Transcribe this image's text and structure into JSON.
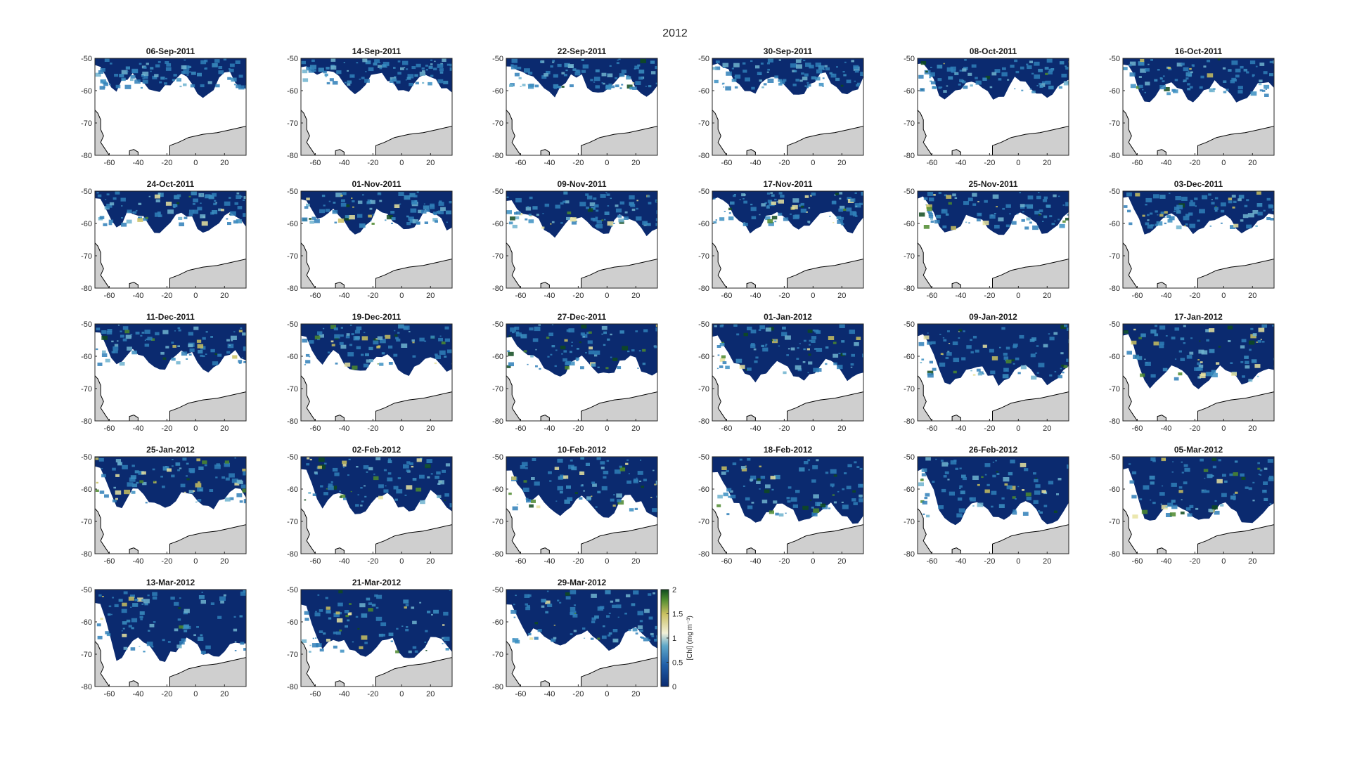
{
  "figure": {
    "title": "2012",
    "colors": {
      "ocean_low": "#0b2a6f",
      "ocean_mid": "#2f7fb8",
      "bloom_mid": "#e8e3a0",
      "bloom_high": "#0f4a1e",
      "sea_ice": "#ffffff",
      "land": "#cfcfcf",
      "coastline": "#000000",
      "axis": "#262626"
    },
    "axes": {
      "x_ticks": [
        "-60",
        "-40",
        "-20",
        "0",
        "20"
      ],
      "y_ticks": [
        "-50",
        "-60",
        "-70",
        "-80"
      ],
      "x_range": [
        -70,
        35
      ],
      "y_range": [
        -80,
        -50
      ]
    },
    "panels": [
      {
        "date": "06-Sep-2011",
        "ice_edge_lat": -57,
        "bloom": 0.08
      },
      {
        "date": "14-Sep-2011",
        "ice_edge_lat": -56,
        "bloom": 0.05
      },
      {
        "date": "22-Sep-2011",
        "ice_edge_lat": -57,
        "bloom": 0.08
      },
      {
        "date": "30-Sep-2011",
        "ice_edge_lat": -57,
        "bloom": 0.08
      },
      {
        "date": "08-Oct-2011",
        "ice_edge_lat": -58,
        "bloom": 0.08
      },
      {
        "date": "16-Oct-2011",
        "ice_edge_lat": -59,
        "bloom": 0.15
      },
      {
        "date": "24-Oct-2011",
        "ice_edge_lat": -58,
        "bloom": 0.25
      },
      {
        "date": "01-Nov-2011",
        "ice_edge_lat": -58,
        "bloom": 0.3
      },
      {
        "date": "09-Nov-2011",
        "ice_edge_lat": -59,
        "bloom": 0.3
      },
      {
        "date": "17-Nov-2011",
        "ice_edge_lat": -58,
        "bloom": 0.3
      },
      {
        "date": "25-Nov-2011",
        "ice_edge_lat": -59,
        "bloom": 0.3
      },
      {
        "date": "03-Dec-2011",
        "ice_edge_lat": -59,
        "bloom": 0.3
      },
      {
        "date": "11-Dec-2011",
        "ice_edge_lat": -60,
        "bloom": 0.4
      },
      {
        "date": "19-Dec-2011",
        "ice_edge_lat": -61,
        "bloom": 0.4
      },
      {
        "date": "27-Dec-2011",
        "ice_edge_lat": -62,
        "bloom": 0.4
      },
      {
        "date": "01-Jan-2012",
        "ice_edge_lat": -63,
        "bloom": 0.4
      },
      {
        "date": "09-Jan-2012",
        "ice_edge_lat": -64,
        "bloom": 0.45
      },
      {
        "date": "17-Jan-2012",
        "ice_edge_lat": -65,
        "bloom": 0.45
      },
      {
        "date": "25-Jan-2012",
        "ice_edge_lat": -62,
        "bloom": 0.5
      },
      {
        "date": "02-Feb-2012",
        "ice_edge_lat": -63,
        "bloom": 0.5
      },
      {
        "date": "10-Feb-2012",
        "ice_edge_lat": -64,
        "bloom": 0.5
      },
      {
        "date": "18-Feb-2012",
        "ice_edge_lat": -66,
        "bloom": 0.45
      },
      {
        "date": "26-Feb-2012",
        "ice_edge_lat": -66,
        "bloom": 0.45
      },
      {
        "date": "05-Mar-2012",
        "ice_edge_lat": -66,
        "bloom": 0.4
      },
      {
        "date": "13-Mar-2012",
        "ice_edge_lat": -67,
        "bloom": 0.3
      },
      {
        "date": "21-Mar-2012",
        "ice_edge_lat": -67,
        "bloom": 0.25
      },
      {
        "date": "29-Mar-2012",
        "ice_edge_lat": -64,
        "bloom": 0.2
      }
    ],
    "colorbar": {
      "label": "[Chl] (mg m⁻³)",
      "ticks": [
        "0",
        "0.5",
        "1",
        "1.5",
        "2"
      ],
      "range": [
        0,
        2
      ]
    }
  }
}
